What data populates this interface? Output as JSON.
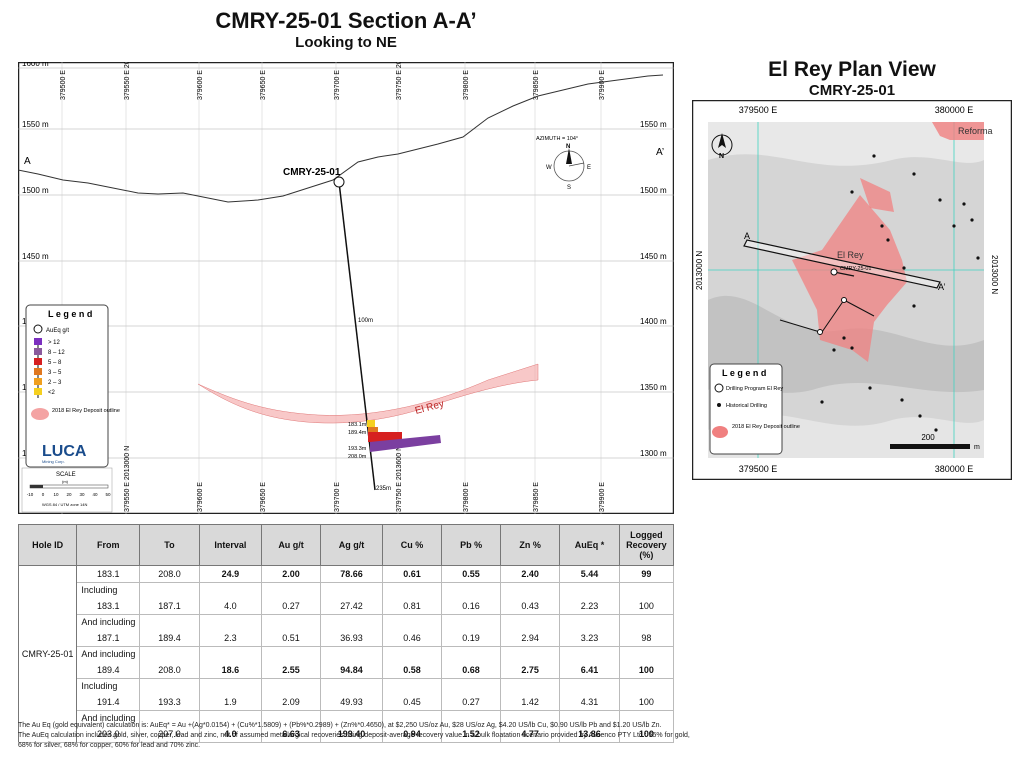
{
  "section": {
    "title": "CMRY-25-01 Section A-A’",
    "subtitle": "Looking to NE",
    "elevation_left": [
      "1600 m",
      "1550 m",
      "1500 m",
      "1450 m",
      "1400 m",
      "1350 m",
      "1300 m"
    ],
    "elevation_right": [
      "1550 m",
      "1500 m",
      "1450 m",
      "1400 m",
      "1350 m",
      "1300 m"
    ],
    "easting_top": [
      "379500 E",
      "379550 E 2013000 N",
      "379600 E",
      "379650 E",
      "379700 E",
      "379750 E 2013600 N",
      "379800 E",
      "379850 E",
      "379900 E"
    ],
    "easting_bottom": [
      "379550 E 2013000 N",
      "379600 E",
      "379650 E",
      "379700 E",
      "379750 E 2013600 N",
      "379800 E",
      "379850 E",
      "379900 E"
    ],
    "label_a": "A",
    "label_a_prime": "A’",
    "hole_label": "CMRY-25-01",
    "depth_100": "100m",
    "depth_235": "235m",
    "deposit_label": "El Rey",
    "intercepts": [
      "183.1m",
      "189.4m",
      "193.3m",
      "208.0m"
    ],
    "compass": {
      "azimuth": "AZIMUTH = 104°",
      "n": "N",
      "e": "E",
      "s": "S",
      "w": "W"
    },
    "legend": {
      "title": "L e g e n d",
      "aueq": "AuEq g/t",
      "items": [
        {
          "label": "> 12",
          "color": "#7b2fbf"
        },
        {
          "label": "8 – 12",
          "color": "#8a5a9c"
        },
        {
          "label": "5 – 8",
          "color": "#d62020"
        },
        {
          "label": "3 – 5",
          "color": "#e07820"
        },
        {
          "label": "2 – 3",
          "color": "#f0a020"
        },
        {
          "label": "<2",
          "color": "#f5d020"
        }
      ],
      "deposit": "2018 El Rey Deposit outline",
      "logo": "LUCA",
      "logo_sub": "Mining Corp."
    },
    "scale": {
      "title": "SCALE",
      "unit": "(m)",
      "ticks": [
        "-10",
        "0",
        "10",
        "20",
        "30",
        "40",
        "50"
      ],
      "datum": "WGS 84 / UTM zone 14N"
    }
  },
  "plan": {
    "title": "El Rey Plan View",
    "subtitle": "CMRY-25-01",
    "coords_top": [
      "379500 E",
      "380000 E"
    ],
    "coords_bottom": [
      "379500 E",
      "380000 E"
    ],
    "coords_side": "2013000 N",
    "label_a": "A",
    "label_a_prime": "A’",
    "deposit_label": "El Rey",
    "reforma_label": "Reforma",
    "hole_label": "CMRY-25-01",
    "north": "N",
    "legend": {
      "title": "L e g e n d",
      "drilling_program": "Drilling Program El Rey",
      "historical": "Historical Drilling",
      "deposit": "2018 El Rey Deposit outline"
    },
    "scale_value": "200",
    "scale_unit": "m"
  },
  "table": {
    "headers": [
      "Hole ID",
      "From",
      "To",
      "Interval",
      "Au g/t",
      "Ag g/t",
      "Cu %",
      "Pb %",
      "Zn %",
      "AuEq *",
      "Logged Recovery (%)"
    ],
    "hole_id": "CMRY-25-01",
    "rows": [
      {
        "label": "",
        "values": [
          "183.1",
          "208.0",
          "24.9",
          "2.00",
          "78.66",
          "0.61",
          "0.55",
          "2.40",
          "5.44",
          "99"
        ],
        "bold": true
      },
      {
        "label": "Including",
        "values": [
          "183.1",
          "187.1",
          "4.0",
          "0.27",
          "27.42",
          "0.81",
          "0.16",
          "0.43",
          "2.23",
          "100"
        ],
        "bold": false
      },
      {
        "label": "And including",
        "values": [
          "187.1",
          "189.4",
          "2.3",
          "0.51",
          "36.93",
          "0.46",
          "0.19",
          "2.94",
          "3.23",
          "98"
        ],
        "bold": false
      },
      {
        "label": "And including",
        "values": [
          "189.4",
          "208.0",
          "18.6",
          "2.55",
          "94.84",
          "0.58",
          "0.68",
          "2.75",
          "6.41",
          "100"
        ],
        "bold": true
      },
      {
        "label": "Including",
        "values": [
          "191.4",
          "193.3",
          "1.9",
          "2.09",
          "49.93",
          "0.45",
          "0.27",
          "1.42",
          "4.31",
          "100"
        ],
        "bold": false
      },
      {
        "label": "And including",
        "values": [
          "203.0",
          "207.0",
          "4.0",
          "6.63",
          "199.40",
          "0.94",
          "1.52",
          "4.77",
          "13.86",
          "100"
        ],
        "bold": true
      }
    ]
  },
  "notes": [
    "The Au Eq (gold equivalent) calculation is: AuEq* = Au +(Ag*0.0154) + (Cu%*1.5809) + (Pb%*0.2989) + (Zn%*0.4650), at $2,250 US/oz Au, $28 US/oz Ag, $4.20 US/lb Cu, $0.90 US/lb Pb and $1.20 US/lb Zn.",
    "The AuEq calculation includes gold, silver, copper, lead and zinc, net of assumed metallurgical recoveries using deposit-average recovery value in a bulk floatation scenario provided by Ausenco PTY Ltd.: 55% for gold, 68% for silver, 68% for copper, 60% for lead and 70% zinc."
  ]
}
